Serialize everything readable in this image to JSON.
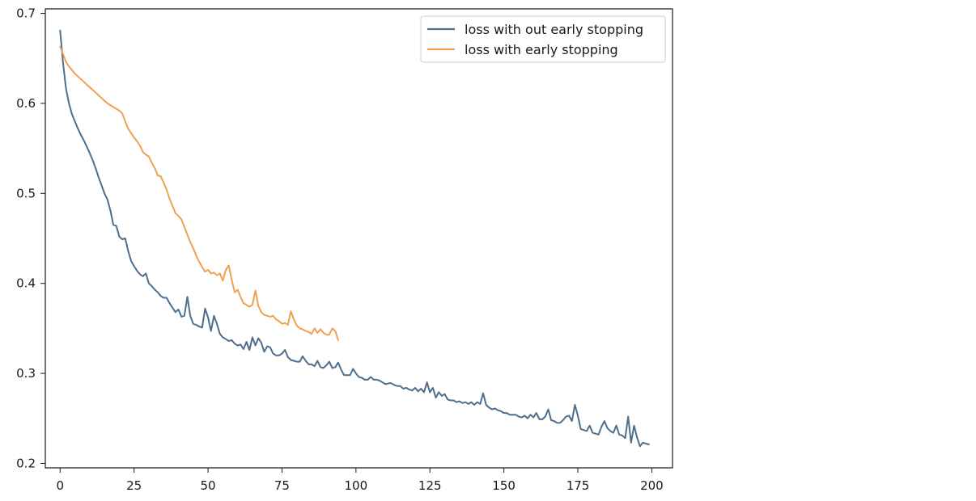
{
  "chart_data": {
    "type": "line",
    "title": "",
    "xlabel": "",
    "ylabel": "",
    "xlim": [
      -5,
      207
    ],
    "ylim": [
      0.195,
      0.705
    ],
    "xticks": [
      0,
      25,
      50,
      75,
      100,
      125,
      150,
      175,
      200
    ],
    "yticks": [
      0.2,
      0.3,
      0.4,
      0.5,
      0.6,
      0.7
    ],
    "grid": false,
    "legend": "top-right",
    "series": [
      {
        "name": "loss with out early stopping",
        "color": "#4e6e8e",
        "points": [
          [
            0,
            0.681
          ],
          [
            1,
            0.645
          ],
          [
            2,
            0.616
          ],
          [
            3,
            0.6
          ],
          [
            4,
            0.588
          ],
          [
            5,
            0.58
          ],
          [
            6,
            0.572
          ],
          [
            7,
            0.565
          ],
          [
            8,
            0.559
          ],
          [
            9,
            0.552
          ],
          [
            10,
            0.545
          ],
          [
            11,
            0.537
          ],
          [
            12,
            0.528
          ],
          [
            13,
            0.518
          ],
          [
            14,
            0.509
          ],
          [
            15,
            0.5
          ],
          [
            16,
            0.493
          ],
          [
            17,
            0.481
          ],
          [
            18,
            0.465
          ],
          [
            19,
            0.464
          ],
          [
            20,
            0.452
          ],
          [
            21,
            0.449
          ],
          [
            22,
            0.45
          ],
          [
            23,
            0.436
          ],
          [
            24,
            0.425
          ],
          [
            25,
            0.419
          ],
          [
            26,
            0.414
          ],
          [
            27,
            0.41
          ],
          [
            28,
            0.408
          ],
          [
            29,
            0.411
          ],
          [
            30,
            0.4
          ],
          [
            31,
            0.397
          ],
          [
            32,
            0.393
          ],
          [
            33,
            0.39
          ],
          [
            34,
            0.386
          ],
          [
            35,
            0.384
          ],
          [
            36,
            0.384
          ],
          [
            37,
            0.378
          ],
          [
            38,
            0.373
          ],
          [
            39,
            0.368
          ],
          [
            40,
            0.371
          ],
          [
            41,
            0.363
          ],
          [
            42,
            0.364
          ],
          [
            43,
            0.385
          ],
          [
            44,
            0.364
          ],
          [
            45,
            0.355
          ],
          [
            46,
            0.354
          ],
          [
            47,
            0.352
          ],
          [
            48,
            0.351
          ],
          [
            49,
            0.372
          ],
          [
            50,
            0.362
          ],
          [
            51,
            0.347
          ],
          [
            52,
            0.364
          ],
          [
            53,
            0.355
          ],
          [
            54,
            0.344
          ],
          [
            55,
            0.34
          ],
          [
            56,
            0.338
          ],
          [
            57,
            0.336
          ],
          [
            58,
            0.337
          ],
          [
            59,
            0.333
          ],
          [
            60,
            0.331
          ],
          [
            61,
            0.332
          ],
          [
            62,
            0.327
          ],
          [
            63,
            0.335
          ],
          [
            64,
            0.326
          ],
          [
            65,
            0.34
          ],
          [
            66,
            0.331
          ],
          [
            67,
            0.339
          ],
          [
            68,
            0.334
          ],
          [
            69,
            0.324
          ],
          [
            70,
            0.33
          ],
          [
            71,
            0.329
          ],
          [
            72,
            0.322
          ],
          [
            73,
            0.32
          ],
          [
            74,
            0.32
          ],
          [
            75,
            0.322
          ],
          [
            76,
            0.326
          ],
          [
            77,
            0.318
          ],
          [
            78,
            0.315
          ],
          [
            79,
            0.314
          ],
          [
            80,
            0.313
          ],
          [
            81,
            0.313
          ],
          [
            82,
            0.319
          ],
          [
            83,
            0.314
          ],
          [
            84,
            0.31
          ],
          [
            85,
            0.31
          ],
          [
            86,
            0.308
          ],
          [
            87,
            0.314
          ],
          [
            88,
            0.307
          ],
          [
            89,
            0.306
          ],
          [
            90,
            0.309
          ],
          [
            91,
            0.313
          ],
          [
            92,
            0.306
          ],
          [
            93,
            0.307
          ],
          [
            94,
            0.312
          ],
          [
            95,
            0.304
          ],
          [
            96,
            0.298
          ],
          [
            97,
            0.298
          ],
          [
            98,
            0.298
          ],
          [
            99,
            0.305
          ],
          [
            100,
            0.3
          ],
          [
            101,
            0.296
          ],
          [
            102,
            0.295
          ],
          [
            103,
            0.293
          ],
          [
            104,
            0.293
          ],
          [
            105,
            0.296
          ],
          [
            106,
            0.293
          ],
          [
            107,
            0.293
          ],
          [
            108,
            0.292
          ],
          [
            109,
            0.29
          ],
          [
            110,
            0.288
          ],
          [
            111,
            0.289
          ],
          [
            112,
            0.289
          ],
          [
            113,
            0.287
          ],
          [
            114,
            0.286
          ],
          [
            115,
            0.286
          ],
          [
            116,
            0.283
          ],
          [
            117,
            0.284
          ],
          [
            118,
            0.282
          ],
          [
            119,
            0.281
          ],
          [
            120,
            0.284
          ],
          [
            121,
            0.28
          ],
          [
            122,
            0.283
          ],
          [
            123,
            0.279
          ],
          [
            124,
            0.29
          ],
          [
            125,
            0.279
          ],
          [
            126,
            0.284
          ],
          [
            127,
            0.273
          ],
          [
            128,
            0.279
          ],
          [
            129,
            0.275
          ],
          [
            130,
            0.277
          ],
          [
            131,
            0.271
          ],
          [
            132,
            0.27
          ],
          [
            133,
            0.27
          ],
          [
            134,
            0.268
          ],
          [
            135,
            0.269
          ],
          [
            136,
            0.267
          ],
          [
            137,
            0.268
          ],
          [
            138,
            0.266
          ],
          [
            139,
            0.268
          ],
          [
            140,
            0.265
          ],
          [
            141,
            0.268
          ],
          [
            142,
            0.266
          ],
          [
            143,
            0.278
          ],
          [
            144,
            0.265
          ],
          [
            145,
            0.262
          ],
          [
            146,
            0.26
          ],
          [
            147,
            0.261
          ],
          [
            148,
            0.259
          ],
          [
            149,
            0.258
          ],
          [
            150,
            0.256
          ],
          [
            151,
            0.256
          ],
          [
            152,
            0.254
          ],
          [
            153,
            0.254
          ],
          [
            154,
            0.254
          ],
          [
            155,
            0.252
          ],
          [
            156,
            0.251
          ],
          [
            157,
            0.253
          ],
          [
            158,
            0.25
          ],
          [
            159,
            0.254
          ],
          [
            160,
            0.251
          ],
          [
            161,
            0.256
          ],
          [
            162,
            0.249
          ],
          [
            163,
            0.249
          ],
          [
            164,
            0.252
          ],
          [
            165,
            0.26
          ],
          [
            166,
            0.248
          ],
          [
            167,
            0.247
          ],
          [
            168,
            0.245
          ],
          [
            169,
            0.245
          ],
          [
            170,
            0.248
          ],
          [
            171,
            0.252
          ],
          [
            172,
            0.253
          ],
          [
            173,
            0.247
          ],
          [
            174,
            0.265
          ],
          [
            175,
            0.253
          ],
          [
            176,
            0.238
          ],
          [
            177,
            0.237
          ],
          [
            178,
            0.236
          ],
          [
            179,
            0.242
          ],
          [
            180,
            0.234
          ],
          [
            181,
            0.233
          ],
          [
            182,
            0.232
          ],
          [
            183,
            0.241
          ],
          [
            184,
            0.247
          ],
          [
            185,
            0.239
          ],
          [
            186,
            0.236
          ],
          [
            187,
            0.234
          ],
          [
            188,
            0.242
          ],
          [
            189,
            0.232
          ],
          [
            190,
            0.231
          ],
          [
            191,
            0.228
          ],
          [
            192,
            0.252
          ],
          [
            193,
            0.223
          ],
          [
            194,
            0.242
          ],
          [
            195,
            0.229
          ],
          [
            196,
            0.219
          ],
          [
            197,
            0.223
          ],
          [
            198,
            0.222
          ],
          [
            199,
            0.221
          ]
        ]
      },
      {
        "name": "loss with early stopping",
        "color": "#f0a050",
        "points": [
          [
            0,
            0.663
          ],
          [
            1,
            0.655
          ],
          [
            2,
            0.646
          ],
          [
            3,
            0.641
          ],
          [
            4,
            0.637
          ],
          [
            5,
            0.633
          ],
          [
            6,
            0.63
          ],
          [
            7,
            0.627
          ],
          [
            8,
            0.624
          ],
          [
            9,
            0.621
          ],
          [
            10,
            0.618
          ],
          [
            11,
            0.615
          ],
          [
            12,
            0.612
          ],
          [
            13,
            0.609
          ],
          [
            14,
            0.606
          ],
          [
            15,
            0.603
          ],
          [
            16,
            0.6
          ],
          [
            17,
            0.598
          ],
          [
            18,
            0.596
          ],
          [
            19,
            0.594
          ],
          [
            20,
            0.592
          ],
          [
            21,
            0.589
          ],
          [
            22,
            0.58
          ],
          [
            23,
            0.572
          ],
          [
            24,
            0.567
          ],
          [
            25,
            0.562
          ],
          [
            26,
            0.558
          ],
          [
            27,
            0.553
          ],
          [
            28,
            0.546
          ],
          [
            29,
            0.543
          ],
          [
            30,
            0.541
          ],
          [
            31,
            0.534
          ],
          [
            32,
            0.528
          ],
          [
            33,
            0.52
          ],
          [
            34,
            0.519
          ],
          [
            35,
            0.512
          ],
          [
            36,
            0.504
          ],
          [
            37,
            0.494
          ],
          [
            38,
            0.486
          ],
          [
            39,
            0.478
          ],
          [
            40,
            0.475
          ],
          [
            41,
            0.471
          ],
          [
            42,
            0.463
          ],
          [
            43,
            0.454
          ],
          [
            44,
            0.446
          ],
          [
            45,
            0.439
          ],
          [
            46,
            0.431
          ],
          [
            47,
            0.424
          ],
          [
            48,
            0.418
          ],
          [
            49,
            0.413
          ],
          [
            50,
            0.415
          ],
          [
            51,
            0.411
          ],
          [
            52,
            0.412
          ],
          [
            53,
            0.409
          ],
          [
            54,
            0.411
          ],
          [
            55,
            0.403
          ],
          [
            56,
            0.415
          ],
          [
            57,
            0.42
          ],
          [
            58,
            0.404
          ],
          [
            59,
            0.39
          ],
          [
            60,
            0.393
          ],
          [
            61,
            0.385
          ],
          [
            62,
            0.378
          ],
          [
            63,
            0.376
          ],
          [
            64,
            0.374
          ],
          [
            65,
            0.376
          ],
          [
            66,
            0.392
          ],
          [
            67,
            0.375
          ],
          [
            68,
            0.368
          ],
          [
            69,
            0.365
          ],
          [
            70,
            0.364
          ],
          [
            71,
            0.363
          ],
          [
            72,
            0.364
          ],
          [
            73,
            0.36
          ],
          [
            74,
            0.358
          ],
          [
            75,
            0.355
          ],
          [
            76,
            0.356
          ],
          [
            77,
            0.354
          ],
          [
            78,
            0.369
          ],
          [
            79,
            0.36
          ],
          [
            80,
            0.353
          ],
          [
            81,
            0.35
          ],
          [
            82,
            0.349
          ],
          [
            83,
            0.347
          ],
          [
            84,
            0.346
          ],
          [
            85,
            0.344
          ],
          [
            86,
            0.35
          ],
          [
            87,
            0.345
          ],
          [
            88,
            0.349
          ],
          [
            89,
            0.345
          ],
          [
            90,
            0.343
          ],
          [
            91,
            0.343
          ],
          [
            92,
            0.35
          ],
          [
            93,
            0.347
          ],
          [
            94,
            0.337
          ]
        ]
      }
    ]
  }
}
